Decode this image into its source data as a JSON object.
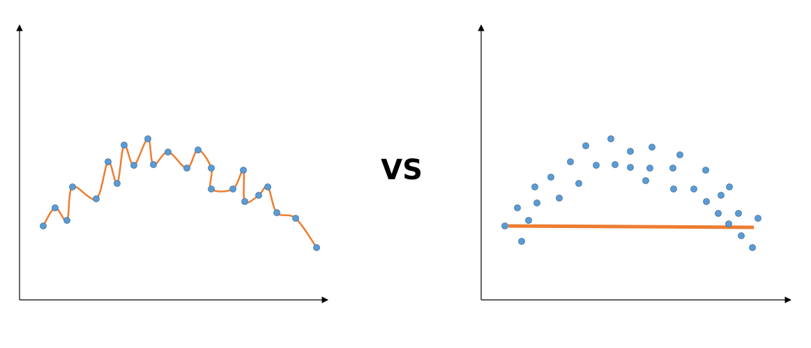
{
  "center_label": "VS",
  "colors": {
    "axis": "#000000",
    "point_fill": "#5b9bd5",
    "point_stroke": "#41719c",
    "fit_line": "#ed7d31"
  },
  "chart_data": [
    {
      "type": "scatter",
      "fit": "overfit-curve",
      "points": [
        [
          62,
          324
        ],
        [
          79,
          298
        ],
        [
          96,
          316
        ],
        [
          104,
          268
        ],
        [
          138,
          285
        ],
        [
          155,
          232
        ],
        [
          168,
          263
        ],
        [
          178,
          208
        ],
        [
          192,
          237
        ],
        [
          212,
          199
        ],
        [
          220,
          236
        ],
        [
          241,
          218
        ],
        [
          268,
          241
        ],
        [
          284,
          215
        ],
        [
          303,
          241
        ],
        [
          303,
          271
        ],
        [
          334,
          271
        ],
        [
          349,
          244
        ],
        [
          351,
          289
        ],
        [
          371,
          280
        ],
        [
          384,
          268
        ],
        [
          397,
          305
        ],
        [
          424,
          313
        ],
        [
          454,
          355
        ]
      ]
    },
    {
      "type": "scatter",
      "fit": "underfit-line",
      "points": [
        [
          724,
          324
        ],
        [
          742,
          298
        ],
        [
          748,
          346
        ],
        [
          758,
          316
        ],
        [
          767,
          268
        ],
        [
          770,
          291
        ],
        [
          790,
          254
        ],
        [
          802,
          284
        ],
        [
          818,
          232
        ],
        [
          830,
          263
        ],
        [
          840,
          209
        ],
        [
          855,
          237
        ],
        [
          876,
          199
        ],
        [
          882,
          236
        ],
        [
          904,
          217
        ],
        [
          904,
          240
        ],
        [
          926,
          259
        ],
        [
          932,
          241
        ],
        [
          935,
          211
        ],
        [
          965,
          241
        ],
        [
          966,
          271
        ],
        [
          975,
          222
        ],
        [
          995,
          271
        ],
        [
          1012,
          244
        ],
        [
          1013,
          289
        ],
        [
          1030,
          306
        ],
        [
          1034,
          280
        ],
        [
          1045,
          321
        ],
        [
          1046,
          268
        ],
        [
          1059,
          306
        ],
        [
          1063,
          338
        ],
        [
          1079,
          355
        ],
        [
          1087,
          313
        ]
      ],
      "line": [
        [
          729,
          324
        ],
        [
          1081,
          326
        ]
      ]
    }
  ]
}
